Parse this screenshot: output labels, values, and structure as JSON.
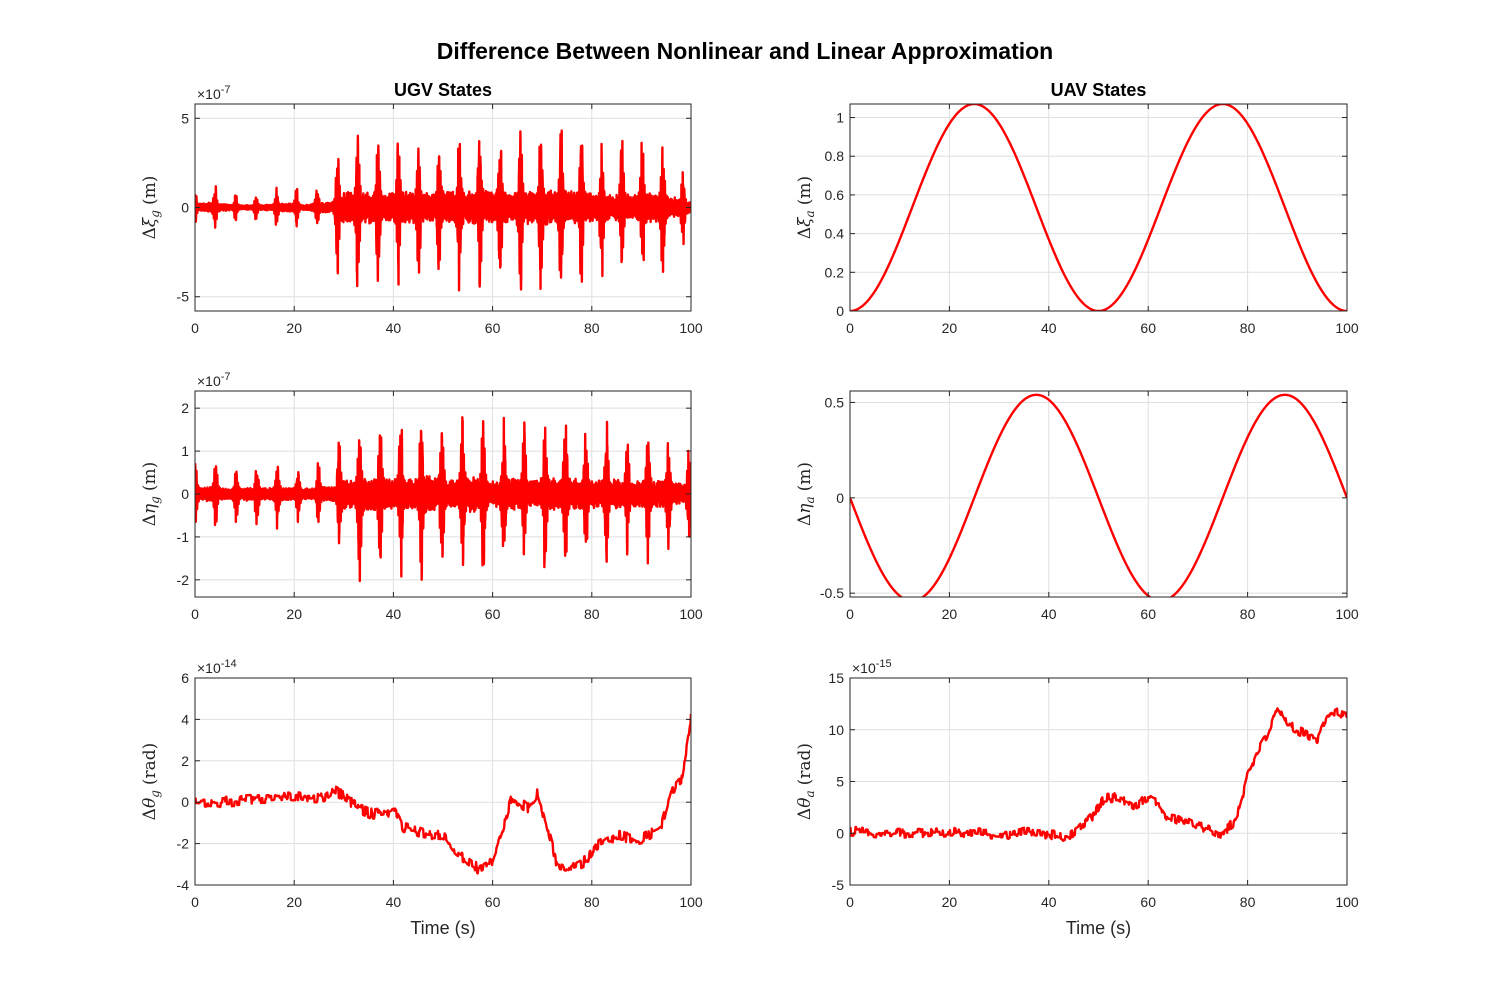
{
  "figure_title": "Difference Between Nonlinear and Linear Approximation",
  "colors": {
    "line": "#ff0000",
    "grid": "#dfdfdf",
    "axes": "#262626"
  },
  "chart_data": [
    {
      "id": "ugv-xi",
      "type": "line",
      "title": "UGV States",
      "ylabel": {
        "delta": "Δ",
        "sym": "ξ",
        "sub": "g",
        "unit": "(m)"
      },
      "xlabel": "",
      "exponent_base": "×10",
      "exponent": "-7",
      "xlim": [
        0,
        100
      ],
      "ylim": [
        -5.8,
        5.8
      ],
      "xticks": [
        0,
        20,
        40,
        60,
        80,
        100
      ],
      "xticklabels": [
        "0",
        "20",
        "40",
        "60",
        "80",
        "100"
      ],
      "yticks": [
        -5,
        0,
        5
      ],
      "yticklabels": [
        "-5",
        "0",
        "5"
      ],
      "grid": true,
      "series": [
        {
          "kind": "oscillatory",
          "period": 4.1,
          "peaks": [
            [
              0,
              1.0
            ],
            [
              3,
              1.6
            ],
            [
              7,
              0.9
            ],
            [
              10,
              0.7
            ],
            [
              15,
              0.9
            ],
            [
              19,
              1.5
            ],
            [
              22,
              0.8
            ],
            [
              25,
              1.4
            ],
            [
              27.5,
              1.6
            ],
            [
              29,
              4.5
            ],
            [
              33,
              5.5
            ],
            [
              38,
              4.6
            ],
            [
              42,
              5.4
            ],
            [
              46,
              4.5
            ],
            [
              50,
              5.1
            ],
            [
              55,
              5.0
            ],
            [
              59,
              5.4
            ],
            [
              63,
              4.8
            ],
            [
              67,
              5.3
            ],
            [
              71,
              5.5
            ],
            [
              75,
              5.4
            ],
            [
              80,
              4.6
            ],
            [
              84,
              4.3
            ],
            [
              88,
              4.2
            ],
            [
              92,
              4.9
            ],
            [
              96,
              3.6
            ],
            [
              100,
              1.7
            ]
          ]
        }
      ]
    },
    {
      "id": "uav-xi",
      "type": "line",
      "title": "UAV States",
      "ylabel": {
        "delta": "Δ",
        "sym": "ξ",
        "sub": "a",
        "unit": "(m)"
      },
      "xlabel": "",
      "exponent_base": "",
      "exponent": "",
      "xlim": [
        0,
        100
      ],
      "ylim": [
        0,
        1.07
      ],
      "xticks": [
        0,
        20,
        40,
        60,
        80,
        100
      ],
      "xticklabels": [
        "0",
        "20",
        "40",
        "60",
        "80",
        "100"
      ],
      "yticks": [
        0,
        0.2,
        0.4,
        0.6,
        0.8,
        1
      ],
      "yticklabels": [
        "0",
        "0.2",
        "0.4",
        "0.6",
        "0.8",
        "1"
      ],
      "grid": true,
      "series": [
        {
          "kind": "cosine",
          "amplitude": 0.535,
          "offset": 0.535,
          "period": 50,
          "phase": 0,
          "sign": -1
        }
      ]
    },
    {
      "id": "ugv-eta",
      "type": "line",
      "title": "",
      "ylabel": {
        "delta": "Δ",
        "sym": "η",
        "sub": "g",
        "unit": "(m)"
      },
      "xlabel": "",
      "exponent_base": "×10",
      "exponent": "-7",
      "xlim": [
        0,
        100
      ],
      "ylim": [
        -2.4,
        2.4
      ],
      "xticks": [
        0,
        20,
        40,
        60,
        80,
        100
      ],
      "xticklabels": [
        "0",
        "20",
        "40",
        "60",
        "80",
        "100"
      ],
      "yticks": [
        -2,
        -1,
        0,
        1,
        2
      ],
      "yticklabels": [
        "-2",
        "-1",
        "0",
        "1",
        "2"
      ],
      "grid": true,
      "series": [
        {
          "kind": "oscillatory",
          "period": 4.15,
          "peaks": [
            [
              0,
              0.9
            ],
            [
              3,
              1.0
            ],
            [
              7,
              0.7
            ],
            [
              10,
              0.9
            ],
            [
              14,
              0.8
            ],
            [
              18,
              0.9
            ],
            [
              22,
              0.8
            ],
            [
              25,
              0.9
            ],
            [
              28,
              1.0
            ],
            [
              30,
              1.9
            ],
            [
              34,
              2.2
            ],
            [
              39,
              2.0
            ],
            [
              43,
              2.1
            ],
            [
              47,
              2.4
            ],
            [
              51,
              1.8
            ],
            [
              56,
              2.4
            ],
            [
              60,
              1.7
            ],
            [
              64,
              2.1
            ],
            [
              68,
              1.7
            ],
            [
              72,
              2.2
            ],
            [
              76,
              2.1
            ],
            [
              80,
              1.8
            ],
            [
              84,
              2.0
            ],
            [
              88,
              1.6
            ],
            [
              92,
              1.9
            ],
            [
              96,
              1.5
            ],
            [
              100,
              1.2
            ]
          ]
        }
      ]
    },
    {
      "id": "uav-eta",
      "type": "line",
      "title": "",
      "ylabel": {
        "delta": "Δ",
        "sym": "η",
        "sub": "a",
        "unit": "(m)"
      },
      "xlabel": "",
      "exponent_base": "",
      "exponent": "",
      "xlim": [
        0,
        100
      ],
      "ylim": [
        -0.52,
        0.56
      ],
      "xticks": [
        0,
        20,
        40,
        60,
        80,
        100
      ],
      "xticklabels": [
        "0",
        "20",
        "40",
        "60",
        "80",
        "100"
      ],
      "yticks": [
        -0.5,
        0,
        0.5
      ],
      "yticklabels": [
        "-0.5",
        "0",
        "0.5"
      ],
      "grid": true,
      "series": [
        {
          "kind": "sine",
          "amplitude": 0.54,
          "offset": 0,
          "period": 50,
          "phase": 0,
          "sign": -1
        }
      ]
    },
    {
      "id": "ugv-theta",
      "type": "line",
      "title": "",
      "ylabel": {
        "delta": "Δ",
        "sym": "θ",
        "sub": "g",
        "unit": "(rad)"
      },
      "xlabel": "Time (s)",
      "exponent_base": "×10",
      "exponent": "-14",
      "xlim": [
        0,
        100
      ],
      "ylim": [
        -4,
        6
      ],
      "xticks": [
        0,
        20,
        40,
        60,
        80,
        100
      ],
      "xticklabels": [
        "0",
        "20",
        "40",
        "60",
        "80",
        "100"
      ],
      "yticks": [
        -4,
        -2,
        0,
        2,
        4,
        6
      ],
      "yticklabels": [
        "-4",
        "-2",
        "0",
        "2",
        "4",
        "6"
      ],
      "grid": true,
      "series": [
        {
          "kind": "random-walk",
          "jitter": 0.5,
          "points": [
            [
              0,
              0
            ],
            [
              5,
              0
            ],
            [
              10,
              0.1
            ],
            [
              15,
              0.1
            ],
            [
              18,
              0.35
            ],
            [
              22,
              0.2
            ],
            [
              26,
              0.2
            ],
            [
              28,
              0.6
            ],
            [
              30,
              0.3
            ],
            [
              33,
              -0.3
            ],
            [
              36,
              -0.6
            ],
            [
              40,
              -0.4
            ],
            [
              42,
              -1.2
            ],
            [
              46,
              -1.5
            ],
            [
              50,
              -1.6
            ],
            [
              52,
              -2.3
            ],
            [
              55,
              -2.8
            ],
            [
              57,
              -3.2
            ],
            [
              60,
              -2.8
            ],
            [
              62,
              -1.4
            ],
            [
              64,
              0.3
            ],
            [
              67,
              -0.3
            ],
            [
              69,
              0.4
            ],
            [
              71,
              -1.2
            ],
            [
              73,
              -3.0
            ],
            [
              76,
              -3.2
            ],
            [
              79,
              -2.8
            ],
            [
              81,
              -2.1
            ],
            [
              85,
              -1.6
            ],
            [
              90,
              -1.8
            ],
            [
              94,
              -1.2
            ],
            [
              96,
              0.6
            ],
            [
              98,
              1.0
            ],
            [
              99.5,
              3.2
            ],
            [
              100,
              4.2
            ]
          ]
        }
      ]
    },
    {
      "id": "uav-theta",
      "type": "line",
      "title": "",
      "ylabel": {
        "delta": "Δ",
        "sym": "θ",
        "sub": "a",
        "unit": "(rad)"
      },
      "xlabel": "Time (s)",
      "exponent_base": "×10",
      "exponent": "-15",
      "xlim": [
        0,
        100
      ],
      "ylim": [
        -5,
        15
      ],
      "xticks": [
        0,
        20,
        40,
        60,
        80,
        100
      ],
      "xticklabels": [
        "0",
        "20",
        "40",
        "60",
        "80",
        "100"
      ],
      "yticks": [
        -5,
        0,
        5,
        10,
        15
      ],
      "yticklabels": [
        "-5",
        "0",
        "5",
        "10",
        "15"
      ],
      "grid": true,
      "series": [
        {
          "kind": "random-walk",
          "jitter": 0.9,
          "points": [
            [
              0,
              0.2
            ],
            [
              5,
              0
            ],
            [
              10,
              0
            ],
            [
              20,
              0.1
            ],
            [
              25,
              0.1
            ],
            [
              30,
              -0.3
            ],
            [
              35,
              0.2
            ],
            [
              40,
              -0.1
            ],
            [
              44,
              -0.4
            ],
            [
              46,
              0.3
            ],
            [
              49,
              1.8
            ],
            [
              51,
              3.3
            ],
            [
              54,
              3.5
            ],
            [
              57,
              2.6
            ],
            [
              60,
              3.4
            ],
            [
              62,
              2.8
            ],
            [
              64,
              1.4
            ],
            [
              68,
              1.2
            ],
            [
              72,
              0.4
            ],
            [
              74,
              -0.2
            ],
            [
              77,
              0.9
            ],
            [
              78,
              1.8
            ],
            [
              80,
              5.5
            ],
            [
              82,
              8.0
            ],
            [
              84,
              9.6
            ],
            [
              86,
              12.5
            ],
            [
              88,
              10.5
            ],
            [
              91,
              9.7
            ],
            [
              94,
              9.0
            ],
            [
              96,
              11.1
            ],
            [
              98,
              11.7
            ],
            [
              100,
              11.3
            ]
          ]
        }
      ]
    }
  ]
}
